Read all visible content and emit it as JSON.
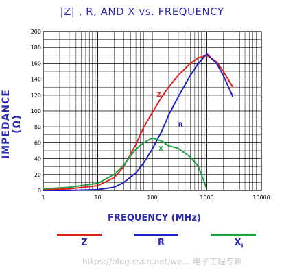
{
  "chart_data": {
    "type": "line",
    "title": "|Z| , R, AND X vs. FREQUENCY",
    "xlabel": "FREQUENCY (MHz)",
    "ylabel": "IMPEDANCE (Ω)",
    "xscale": "log",
    "xlim": [
      1,
      10000
    ],
    "ylim": [
      0,
      200
    ],
    "xticks": [
      "1",
      "10",
      "100",
      "1000",
      "10000"
    ],
    "yticks": [
      "0",
      "20",
      "40",
      "60",
      "80",
      "100",
      "120",
      "140",
      "160",
      "180",
      "200"
    ],
    "grid": true,
    "legend_position": "bottom",
    "series": [
      {
        "name": "Z",
        "color": "#e02020",
        "x": [
          1,
          3,
          10,
          20,
          30,
          50,
          70,
          100,
          150,
          200,
          300,
          500,
          700,
          1000,
          1500,
          2000,
          3000
        ],
        "y": [
          1,
          2,
          6,
          16,
          30,
          58,
          80,
          98,
          118,
          130,
          145,
          160,
          167,
          170,
          162,
          150,
          130
        ]
      },
      {
        "name": "R",
        "color": "#2020c0",
        "x": [
          1,
          3,
          10,
          20,
          30,
          50,
          70,
          100,
          150,
          200,
          300,
          500,
          700,
          1000,
          1500,
          2000,
          3000
        ],
        "y": [
          0,
          0,
          1,
          4,
          10,
          22,
          35,
          52,
          75,
          95,
          118,
          145,
          160,
          172,
          160,
          145,
          118
        ]
      },
      {
        "name": "X",
        "color": "#20a040",
        "x": [
          1,
          3,
          10,
          20,
          30,
          50,
          70,
          100,
          150,
          200,
          300,
          500,
          700,
          1000
        ],
        "y": [
          2,
          4,
          9,
          20,
          32,
          52,
          60,
          66,
          62,
          56,
          53,
          42,
          30,
          2
        ]
      }
    ],
    "annotations": [
      {
        "text": "Z",
        "x": 120,
        "y": 118,
        "color": "#e02020"
      },
      {
        "text": "R",
        "x": 300,
        "y": 80,
        "color": "#2020c0"
      },
      {
        "text": "X",
        "x": 130,
        "y": 50,
        "color": "#20a040"
      }
    ]
  },
  "legend": [
    {
      "label": "Z",
      "color": "#e02020"
    },
    {
      "label": "R",
      "color": "#2020c0"
    },
    {
      "label": "X",
      "sub": "I",
      "color": "#20a040"
    }
  ],
  "watermark": "https://blog.csdn.net/we... 电子工程专辑"
}
